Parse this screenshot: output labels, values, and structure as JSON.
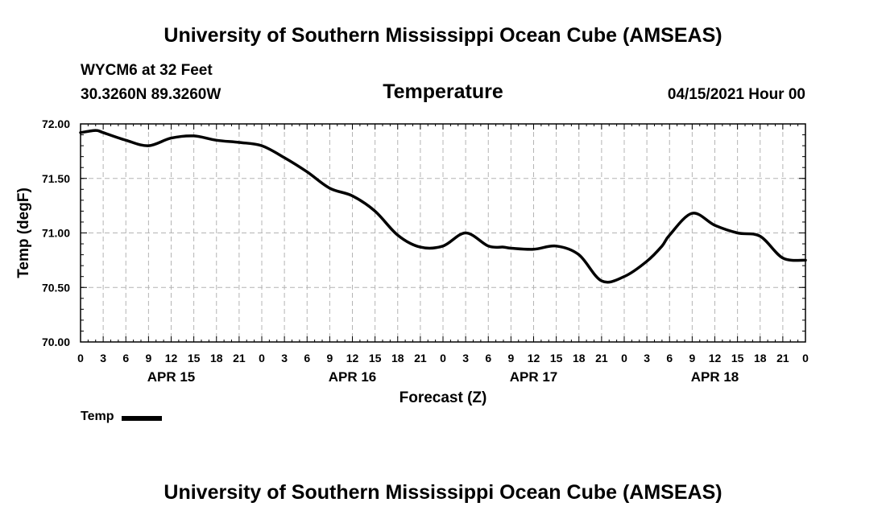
{
  "header": {
    "title": "University of Southern Mississippi Ocean Cube (AMSEAS)",
    "station": "WYCM6 at 32 Feet",
    "coords": "30.3260N  89.3260W",
    "variable": "Temperature",
    "date": "04/15/2021 Hour 00"
  },
  "footer": {
    "title": "University of Southern Mississippi Ocean Cube (AMSEAS)"
  },
  "legend": {
    "label": "Temp"
  },
  "chart_data": {
    "type": "line",
    "title": "Temperature",
    "xlabel": "Forecast (Z)",
    "ylabel": "Temp (degF)",
    "ylim": [
      70.0,
      72.0
    ],
    "xlim": [
      0,
      96
    ],
    "y_ticks": [
      "70.00",
      "70.50",
      "71.00",
      "71.50",
      "72.00"
    ],
    "x_tick_hours": [
      0,
      3,
      6,
      9,
      12,
      15,
      18,
      21,
      24,
      27,
      30,
      33,
      36,
      39,
      42,
      45,
      48,
      51,
      54,
      57,
      60,
      63,
      66,
      69,
      72,
      75,
      78,
      81,
      84,
      87,
      90,
      93,
      96
    ],
    "x_tick_labels": [
      "0",
      "3",
      "6",
      "9",
      "12",
      "15",
      "18",
      "21",
      "0",
      "3",
      "6",
      "9",
      "12",
      "15",
      "18",
      "21",
      "0",
      "3",
      "6",
      "9",
      "12",
      "15",
      "18",
      "21",
      "0",
      "3",
      "6",
      "9",
      "12",
      "15",
      "18",
      "21",
      "0"
    ],
    "day_labels": [
      {
        "hour": 12,
        "label": "APR 15"
      },
      {
        "hour": 36,
        "label": "APR 16"
      },
      {
        "hour": 60,
        "label": "APR 17"
      },
      {
        "hour": 84,
        "label": "APR 18"
      }
    ],
    "grid": true,
    "color": "#000000",
    "series": [
      {
        "name": "Temp",
        "x": [
          0,
          2,
          3,
          6,
          9,
          12,
          15,
          18,
          21,
          24,
          27,
          30,
          33,
          36,
          39,
          42,
          45,
          48,
          51,
          54,
          56,
          57,
          60,
          63,
          66,
          69,
          72,
          75,
          77,
          78,
          81,
          84,
          87,
          90,
          93,
          96
        ],
        "values": [
          71.92,
          71.94,
          71.92,
          71.85,
          71.8,
          71.87,
          71.89,
          71.85,
          71.83,
          71.8,
          71.69,
          71.56,
          71.41,
          71.34,
          71.2,
          70.98,
          70.87,
          70.88,
          71.0,
          70.88,
          70.87,
          70.86,
          70.85,
          70.88,
          70.8,
          70.56,
          70.6,
          70.74,
          70.88,
          70.98,
          71.18,
          71.07,
          71.0,
          70.97,
          70.77,
          70.75
        ]
      }
    ]
  }
}
